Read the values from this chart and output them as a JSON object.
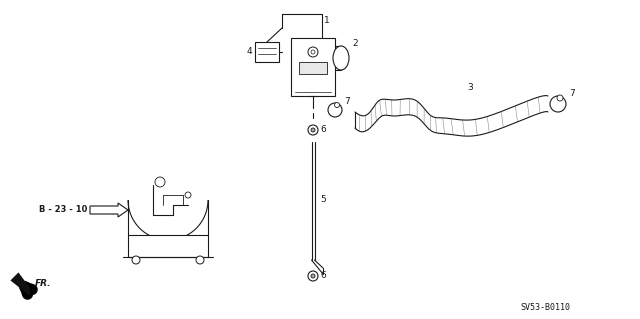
{
  "bg_color": "#ffffff",
  "part_number": "SV53-B0110",
  "fr_label": "FR.",
  "ref_label": "B - 23 - 10",
  "fig_width": 6.4,
  "fig_height": 3.19,
  "dpi": 100,
  "line_color": "#1a1a1a",
  "label_1": "1",
  "label_2": "2",
  "label_3": "3",
  "label_4": "4",
  "label_5": "5",
  "label_6": "6",
  "label_7": "7"
}
